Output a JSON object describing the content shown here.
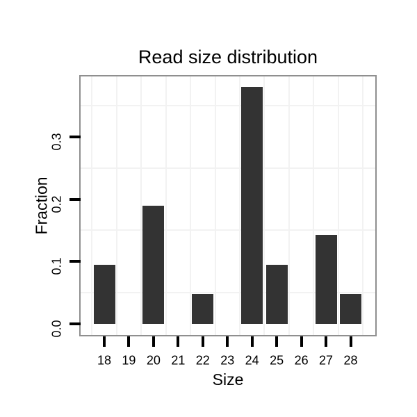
{
  "chart_data": {
    "type": "bar",
    "title": "Read size distribution",
    "xlabel": "Size",
    "ylabel": "Fraction",
    "categories": [
      "18",
      "19",
      "20",
      "21",
      "22",
      "23",
      "24",
      "25",
      "26",
      "27",
      "28"
    ],
    "values": [
      0.095,
      0,
      0.19,
      0,
      0.048,
      0,
      0.381,
      0.095,
      0,
      0.143,
      0.048
    ],
    "y_ticks": [
      "0.0",
      "0.1",
      "0.2",
      "0.3"
    ],
    "y_tick_values": [
      0.0,
      0.1,
      0.2,
      0.3
    ],
    "minor_gridlines_y": [
      0.05,
      0.15,
      0.25,
      0.35
    ],
    "ylim": [
      0,
      0.397
    ],
    "grid": true,
    "legend": false,
    "bar_color": "#333333",
    "panel_border_color": "#8f8f8f",
    "grid_color": "#f2f2f2",
    "tick_color": "#000000",
    "text_color": "#000000",
    "background_color": "#ffffff"
  }
}
